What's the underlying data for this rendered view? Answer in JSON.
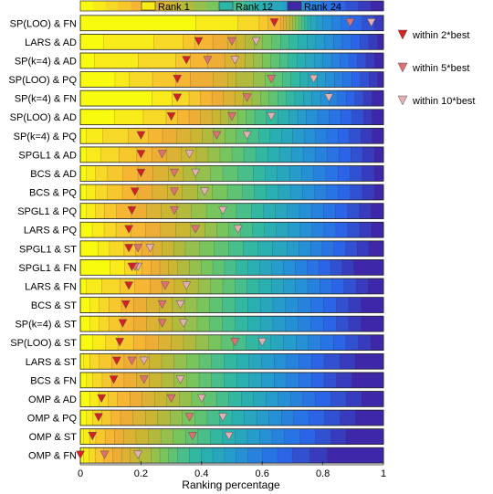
{
  "chart_data": {
    "type": "bar",
    "subtype": "stacked-horizontal-rank-distribution",
    "title": "",
    "xlabel": "Ranking percentage",
    "ylabel": "",
    "xlim": [
      0,
      1
    ],
    "x_ticks": [
      "0",
      "0.2",
      "0.4",
      "0.6",
      "0.8",
      "1"
    ],
    "x_tick_values": [
      0,
      0.2,
      0.4,
      0.6,
      0.8,
      1
    ],
    "grid": false,
    "colorbar": {
      "placement": "top",
      "entries": [
        {
          "label": "Rank 1",
          "color": "#f7ec14"
        },
        {
          "label": "Rank 12",
          "color": "#2ab6a8"
        },
        {
          "label": "Rank 24",
          "color": "#3e27a8"
        }
      ]
    },
    "markers_legend": {
      "placement": "right",
      "entries": [
        {
          "label": "within 2*best",
          "color": "#d62020"
        },
        {
          "label": "within 5*best",
          "color": "#e07070"
        },
        {
          "label": "within 10*best",
          "color": "#e3b0b0"
        }
      ]
    },
    "rows": [
      {
        "name": "SP(LOO) & FN",
        "ranks": [
          0.38,
          0.14,
          0.07,
          0.03,
          0.04,
          0.01,
          0.01,
          0.01,
          0.01,
          0.01,
          0.01,
          0.01,
          0.01,
          0.01,
          0.01,
          0.02,
          0.02,
          0.03,
          0.03,
          0.03,
          0.04,
          0.04,
          0.03,
          0.0
        ],
        "within_2": 0.64,
        "within_5": 0.89,
        "within_10": 0.96
      },
      {
        "name": "LARS & AD",
        "ranks": [
          0.08,
          0.17,
          0.1,
          0.04,
          0.06,
          0.05,
          0.03,
          0.03,
          0.03,
          0.03,
          0.03,
          0.03,
          0.03,
          0.03,
          0.03,
          0.03,
          0.03,
          0.03,
          0.03,
          0.03,
          0.03,
          0.03,
          0.03,
          0.02
        ],
        "within_2": 0.39,
        "within_5": 0.5,
        "within_10": 0.58
      },
      {
        "name": "SP(k=4) & AD",
        "ranks": [
          0.05,
          0.15,
          0.13,
          0.05,
          0.06,
          0.06,
          0.04,
          0.03,
          0.03,
          0.03,
          0.03,
          0.03,
          0.03,
          0.03,
          0.03,
          0.03,
          0.03,
          0.03,
          0.03,
          0.03,
          0.03,
          0.03,
          0.03,
          0.03
        ],
        "within_2": 0.35,
        "within_5": 0.42,
        "within_10": 0.51
      },
      {
        "name": "SP(LOO) & PQ",
        "ranks": [
          0.12,
          0.05,
          0.08,
          0.08,
          0.05,
          0.08,
          0.05,
          0.03,
          0.06,
          0.04,
          0.03,
          0.03,
          0.03,
          0.03,
          0.03,
          0.03,
          0.03,
          0.03,
          0.03,
          0.03,
          0.03,
          0.03,
          0.03,
          0.02
        ],
        "within_2": 0.32,
        "within_5": 0.63,
        "within_10": 0.77
      },
      {
        "name": "SP(k=4) & FN",
        "ranks": [
          0.25,
          0.07,
          0.06,
          0.04,
          0.04,
          0.04,
          0.04,
          0.03,
          0.03,
          0.03,
          0.03,
          0.03,
          0.03,
          0.03,
          0.03,
          0.03,
          0.03,
          0.03,
          0.03,
          0.03,
          0.03,
          0.03,
          0.03,
          0.04
        ],
        "within_2": 0.32,
        "within_5": 0.55,
        "within_10": 0.82
      },
      {
        "name": "SP(LOO) & AD",
        "ranks": [
          0.12,
          0.1,
          0.08,
          0.04,
          0.04,
          0.04,
          0.04,
          0.03,
          0.03,
          0.03,
          0.03,
          0.03,
          0.04,
          0.04,
          0.04,
          0.03,
          0.03,
          0.04,
          0.04,
          0.04,
          0.04,
          0.04,
          0.03,
          0.04
        ],
        "within_2": 0.3,
        "within_5": 0.5,
        "within_10": 0.63
      },
      {
        "name": "SP(k=4) & PQ",
        "ranks": [
          0.02,
          0.06,
          0.09,
          0.07,
          0.05,
          0.05,
          0.05,
          0.04,
          0.04,
          0.04,
          0.04,
          0.04,
          0.04,
          0.04,
          0.04,
          0.04,
          0.04,
          0.04,
          0.04,
          0.04,
          0.04,
          0.04,
          0.04,
          0.04
        ],
        "within_2": 0.2,
        "within_5": 0.45,
        "within_10": 0.55
      },
      {
        "name": "SPGL1 & AD",
        "ranks": [
          0.02,
          0.05,
          0.06,
          0.06,
          0.05,
          0.05,
          0.05,
          0.05,
          0.04,
          0.04,
          0.04,
          0.04,
          0.04,
          0.04,
          0.04,
          0.04,
          0.04,
          0.04,
          0.04,
          0.04,
          0.04,
          0.04,
          0.04,
          0.03
        ],
        "within_2": 0.2,
        "within_5": 0.27,
        "within_10": 0.36
      },
      {
        "name": "BCS & AD",
        "ranks": [
          0.02,
          0.03,
          0.04,
          0.05,
          0.05,
          0.05,
          0.05,
          0.05,
          0.04,
          0.05,
          0.04,
          0.05,
          0.05,
          0.04,
          0.04,
          0.04,
          0.04,
          0.04,
          0.04,
          0.04,
          0.04,
          0.04,
          0.04,
          0.03
        ],
        "within_2": 0.2,
        "within_5": 0.31,
        "within_10": 0.38
      },
      {
        "name": "BCS & PQ",
        "ranks": [
          0.02,
          0.03,
          0.04,
          0.05,
          0.05,
          0.05,
          0.05,
          0.05,
          0.05,
          0.05,
          0.05,
          0.05,
          0.04,
          0.04,
          0.04,
          0.04,
          0.04,
          0.04,
          0.04,
          0.04,
          0.04,
          0.04,
          0.04,
          0.03
        ],
        "within_2": 0.18,
        "within_5": 0.31,
        "within_10": 0.41
      },
      {
        "name": "SPGL1 & PQ",
        "ranks": [
          0.02,
          0.03,
          0.03,
          0.04,
          0.05,
          0.05,
          0.05,
          0.05,
          0.05,
          0.05,
          0.05,
          0.05,
          0.05,
          0.04,
          0.04,
          0.04,
          0.04,
          0.04,
          0.04,
          0.04,
          0.04,
          0.04,
          0.04,
          0.04
        ],
        "within_2": 0.17,
        "within_5": 0.31,
        "within_10": 0.47
      },
      {
        "name": "LARS & PQ",
        "ranks": [
          0.04,
          0.04,
          0.04,
          0.05,
          0.05,
          0.05,
          0.05,
          0.05,
          0.05,
          0.04,
          0.04,
          0.04,
          0.04,
          0.04,
          0.04,
          0.04,
          0.04,
          0.04,
          0.04,
          0.04,
          0.04,
          0.04,
          0.04,
          0.04
        ],
        "within_2": 0.16,
        "within_5": 0.38,
        "within_10": 0.52
      },
      {
        "name": "SPGL1 & ST",
        "ranks": [
          0.06,
          0.04,
          0.05,
          0.04,
          0.02,
          0.04,
          0.03,
          0.04,
          0.04,
          0.05,
          0.05,
          0.05,
          0.05,
          0.05,
          0.05,
          0.05,
          0.04,
          0.04,
          0.04,
          0.04,
          0.04,
          0.04,
          0.04,
          0.05
        ],
        "within_2": 0.16,
        "within_5": 0.19,
        "within_10": 0.23
      },
      {
        "name": "SPGL1 & FN",
        "ranks": [
          0.1,
          0.05,
          0.04,
          0.02,
          0.03,
          0.03,
          0.03,
          0.03,
          0.04,
          0.04,
          0.04,
          0.04,
          0.04,
          0.04,
          0.04,
          0.04,
          0.04,
          0.04,
          0.04,
          0.04,
          0.04,
          0.04,
          0.04,
          0.1
        ],
        "within_2": 0.17,
        "within_5": 0.18,
        "within_10": 0.19
      },
      {
        "name": "LARS & FN",
        "ranks": [
          0.02,
          0.05,
          0.06,
          0.05,
          0.05,
          0.04,
          0.04,
          0.04,
          0.04,
          0.04,
          0.04,
          0.04,
          0.04,
          0.04,
          0.04,
          0.04,
          0.04,
          0.04,
          0.04,
          0.04,
          0.04,
          0.04,
          0.04,
          0.05
        ],
        "within_2": 0.16,
        "within_5": 0.28,
        "within_10": 0.35
      },
      {
        "name": "BCS & ST",
        "ranks": [
          0.03,
          0.03,
          0.03,
          0.04,
          0.04,
          0.04,
          0.04,
          0.04,
          0.04,
          0.04,
          0.04,
          0.04,
          0.04,
          0.04,
          0.04,
          0.04,
          0.04,
          0.04,
          0.04,
          0.04,
          0.04,
          0.04,
          0.04,
          0.07
        ],
        "within_2": 0.15,
        "within_5": 0.27,
        "within_10": 0.33
      },
      {
        "name": "SP(k=4) & ST",
        "ranks": [
          0.03,
          0.03,
          0.03,
          0.04,
          0.04,
          0.04,
          0.04,
          0.04,
          0.04,
          0.04,
          0.04,
          0.04,
          0.04,
          0.04,
          0.04,
          0.04,
          0.04,
          0.04,
          0.04,
          0.04,
          0.04,
          0.04,
          0.04,
          0.07
        ],
        "within_2": 0.14,
        "within_5": 0.27,
        "within_10": 0.34
      },
      {
        "name": "SP(LOO) & ST",
        "ranks": [
          0.04,
          0.04,
          0.04,
          0.05,
          0.04,
          0.04,
          0.04,
          0.04,
          0.04,
          0.04,
          0.04,
          0.04,
          0.04,
          0.04,
          0.04,
          0.04,
          0.04,
          0.04,
          0.04,
          0.04,
          0.04,
          0.04,
          0.04,
          0.04
        ],
        "within_2": 0.13,
        "within_5": 0.51,
        "within_10": 0.6
      },
      {
        "name": "LARS & ST",
        "ranks": [
          0.01,
          0.02,
          0.03,
          0.04,
          0.04,
          0.04,
          0.04,
          0.04,
          0.04,
          0.04,
          0.04,
          0.04,
          0.04,
          0.04,
          0.04,
          0.04,
          0.04,
          0.04,
          0.04,
          0.04,
          0.04,
          0.05,
          0.05,
          0.09
        ],
        "within_2": 0.12,
        "within_5": 0.17,
        "within_10": 0.21
      },
      {
        "name": "BCS & FN",
        "ranks": [
          0.02,
          0.02,
          0.03,
          0.03,
          0.04,
          0.04,
          0.04,
          0.04,
          0.04,
          0.04,
          0.04,
          0.04,
          0.04,
          0.04,
          0.04,
          0.04,
          0.04,
          0.04,
          0.04,
          0.04,
          0.04,
          0.04,
          0.05,
          0.1
        ],
        "within_2": 0.11,
        "within_5": 0.21,
        "within_10": 0.33
      },
      {
        "name": "OMP & AD",
        "ranks": [
          0.03,
          0.03,
          0.03,
          0.03,
          0.04,
          0.04,
          0.04,
          0.04,
          0.04,
          0.04,
          0.04,
          0.04,
          0.04,
          0.04,
          0.04,
          0.04,
          0.04,
          0.04,
          0.04,
          0.04,
          0.05,
          0.05,
          0.05,
          0.07
        ],
        "within_2": 0.07,
        "within_5": 0.3,
        "within_10": 0.4
      },
      {
        "name": "OMP & PQ",
        "ranks": [
          0.02,
          0.02,
          0.03,
          0.03,
          0.03,
          0.04,
          0.04,
          0.04,
          0.04,
          0.04,
          0.04,
          0.04,
          0.04,
          0.04,
          0.04,
          0.04,
          0.04,
          0.04,
          0.04,
          0.05,
          0.05,
          0.05,
          0.05,
          0.09
        ],
        "within_2": 0.06,
        "within_5": 0.36,
        "within_10": 0.47
      },
      {
        "name": "OMP & ST",
        "ranks": [
          0.01,
          0.02,
          0.02,
          0.03,
          0.03,
          0.03,
          0.04,
          0.04,
          0.04,
          0.04,
          0.04,
          0.04,
          0.04,
          0.04,
          0.04,
          0.04,
          0.04,
          0.04,
          0.04,
          0.05,
          0.05,
          0.05,
          0.05,
          0.12
        ],
        "within_2": 0.04,
        "within_5": 0.37,
        "within_10": 0.49
      },
      {
        "name": "OMP & FN",
        "ranks": [
          0.01,
          0.02,
          0.02,
          0.03,
          0.03,
          0.03,
          0.03,
          0.03,
          0.04,
          0.03,
          0.03,
          0.03,
          0.04,
          0.04,
          0.04,
          0.04,
          0.04,
          0.04,
          0.05,
          0.05,
          0.05,
          0.06,
          0.06,
          0.19
        ],
        "within_2": 0.0,
        "within_5": 0.08,
        "within_10": 0.19
      }
    ]
  }
}
